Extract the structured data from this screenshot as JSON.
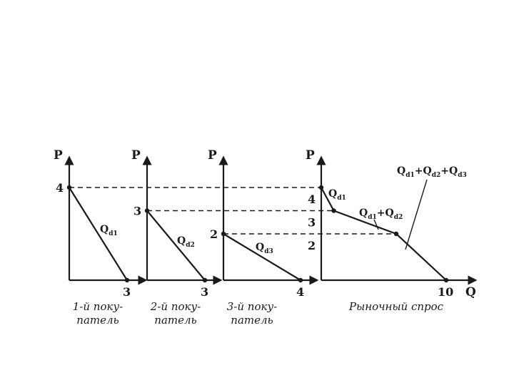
{
  "chart_data": {
    "type": "line",
    "title": "",
    "panels": [
      {
        "caption": [
          "1-й поку-",
          "патель"
        ],
        "ylabel": "P",
        "xlabel": "",
        "curve_label": {
          "main": "Q",
          "sub": "d1"
        },
        "points": [
          [
            0,
            4
          ],
          [
            3,
            0
          ]
        ],
        "x_ticks": [
          "3"
        ],
        "y_ticks": [
          "4"
        ]
      },
      {
        "caption": [
          "2-й поку-",
          "патель"
        ],
        "ylabel": "P",
        "xlabel": "",
        "curve_label": {
          "main": "Q",
          "sub": "d2"
        },
        "points": [
          [
            0,
            3
          ],
          [
            3,
            0
          ]
        ],
        "x_ticks": [
          "3"
        ],
        "y_ticks": [
          "3"
        ]
      },
      {
        "caption": [
          "3-й поку-",
          "патель"
        ],
        "ylabel": "P",
        "xlabel": "",
        "curve_label": {
          "main": "Q",
          "sub": "d3"
        },
        "points": [
          [
            0,
            2
          ],
          [
            4,
            0
          ]
        ],
        "x_ticks": [
          "4"
        ],
        "y_ticks": [
          "2"
        ]
      },
      {
        "caption": [
          "Рыночный спрос"
        ],
        "ylabel": "P",
        "xlabel": "Q",
        "points": [
          [
            0,
            4
          ],
          [
            1,
            3
          ],
          [
            6,
            2
          ],
          [
            10,
            0
          ]
        ],
        "x_ticks": [
          "10"
        ],
        "y_ticks": [
          "4",
          "3",
          "2"
        ],
        "annotations": [
          {
            "main": "Q",
            "sub": "d1"
          },
          {
            "terms": [
              {
                "main": "Q",
                "sub": "d1"
              },
              {
                "main": "Q",
                "sub": "d2"
              }
            ],
            "sep": "+"
          },
          {
            "terms": [
              {
                "main": "Q",
                "sub": "d1"
              },
              {
                "main": "Q",
                "sub": "d2"
              },
              {
                "main": "Q",
                "sub": "d3"
              }
            ],
            "sep": "+"
          }
        ]
      }
    ],
    "dashed_levels": [
      4,
      3,
      2
    ]
  }
}
